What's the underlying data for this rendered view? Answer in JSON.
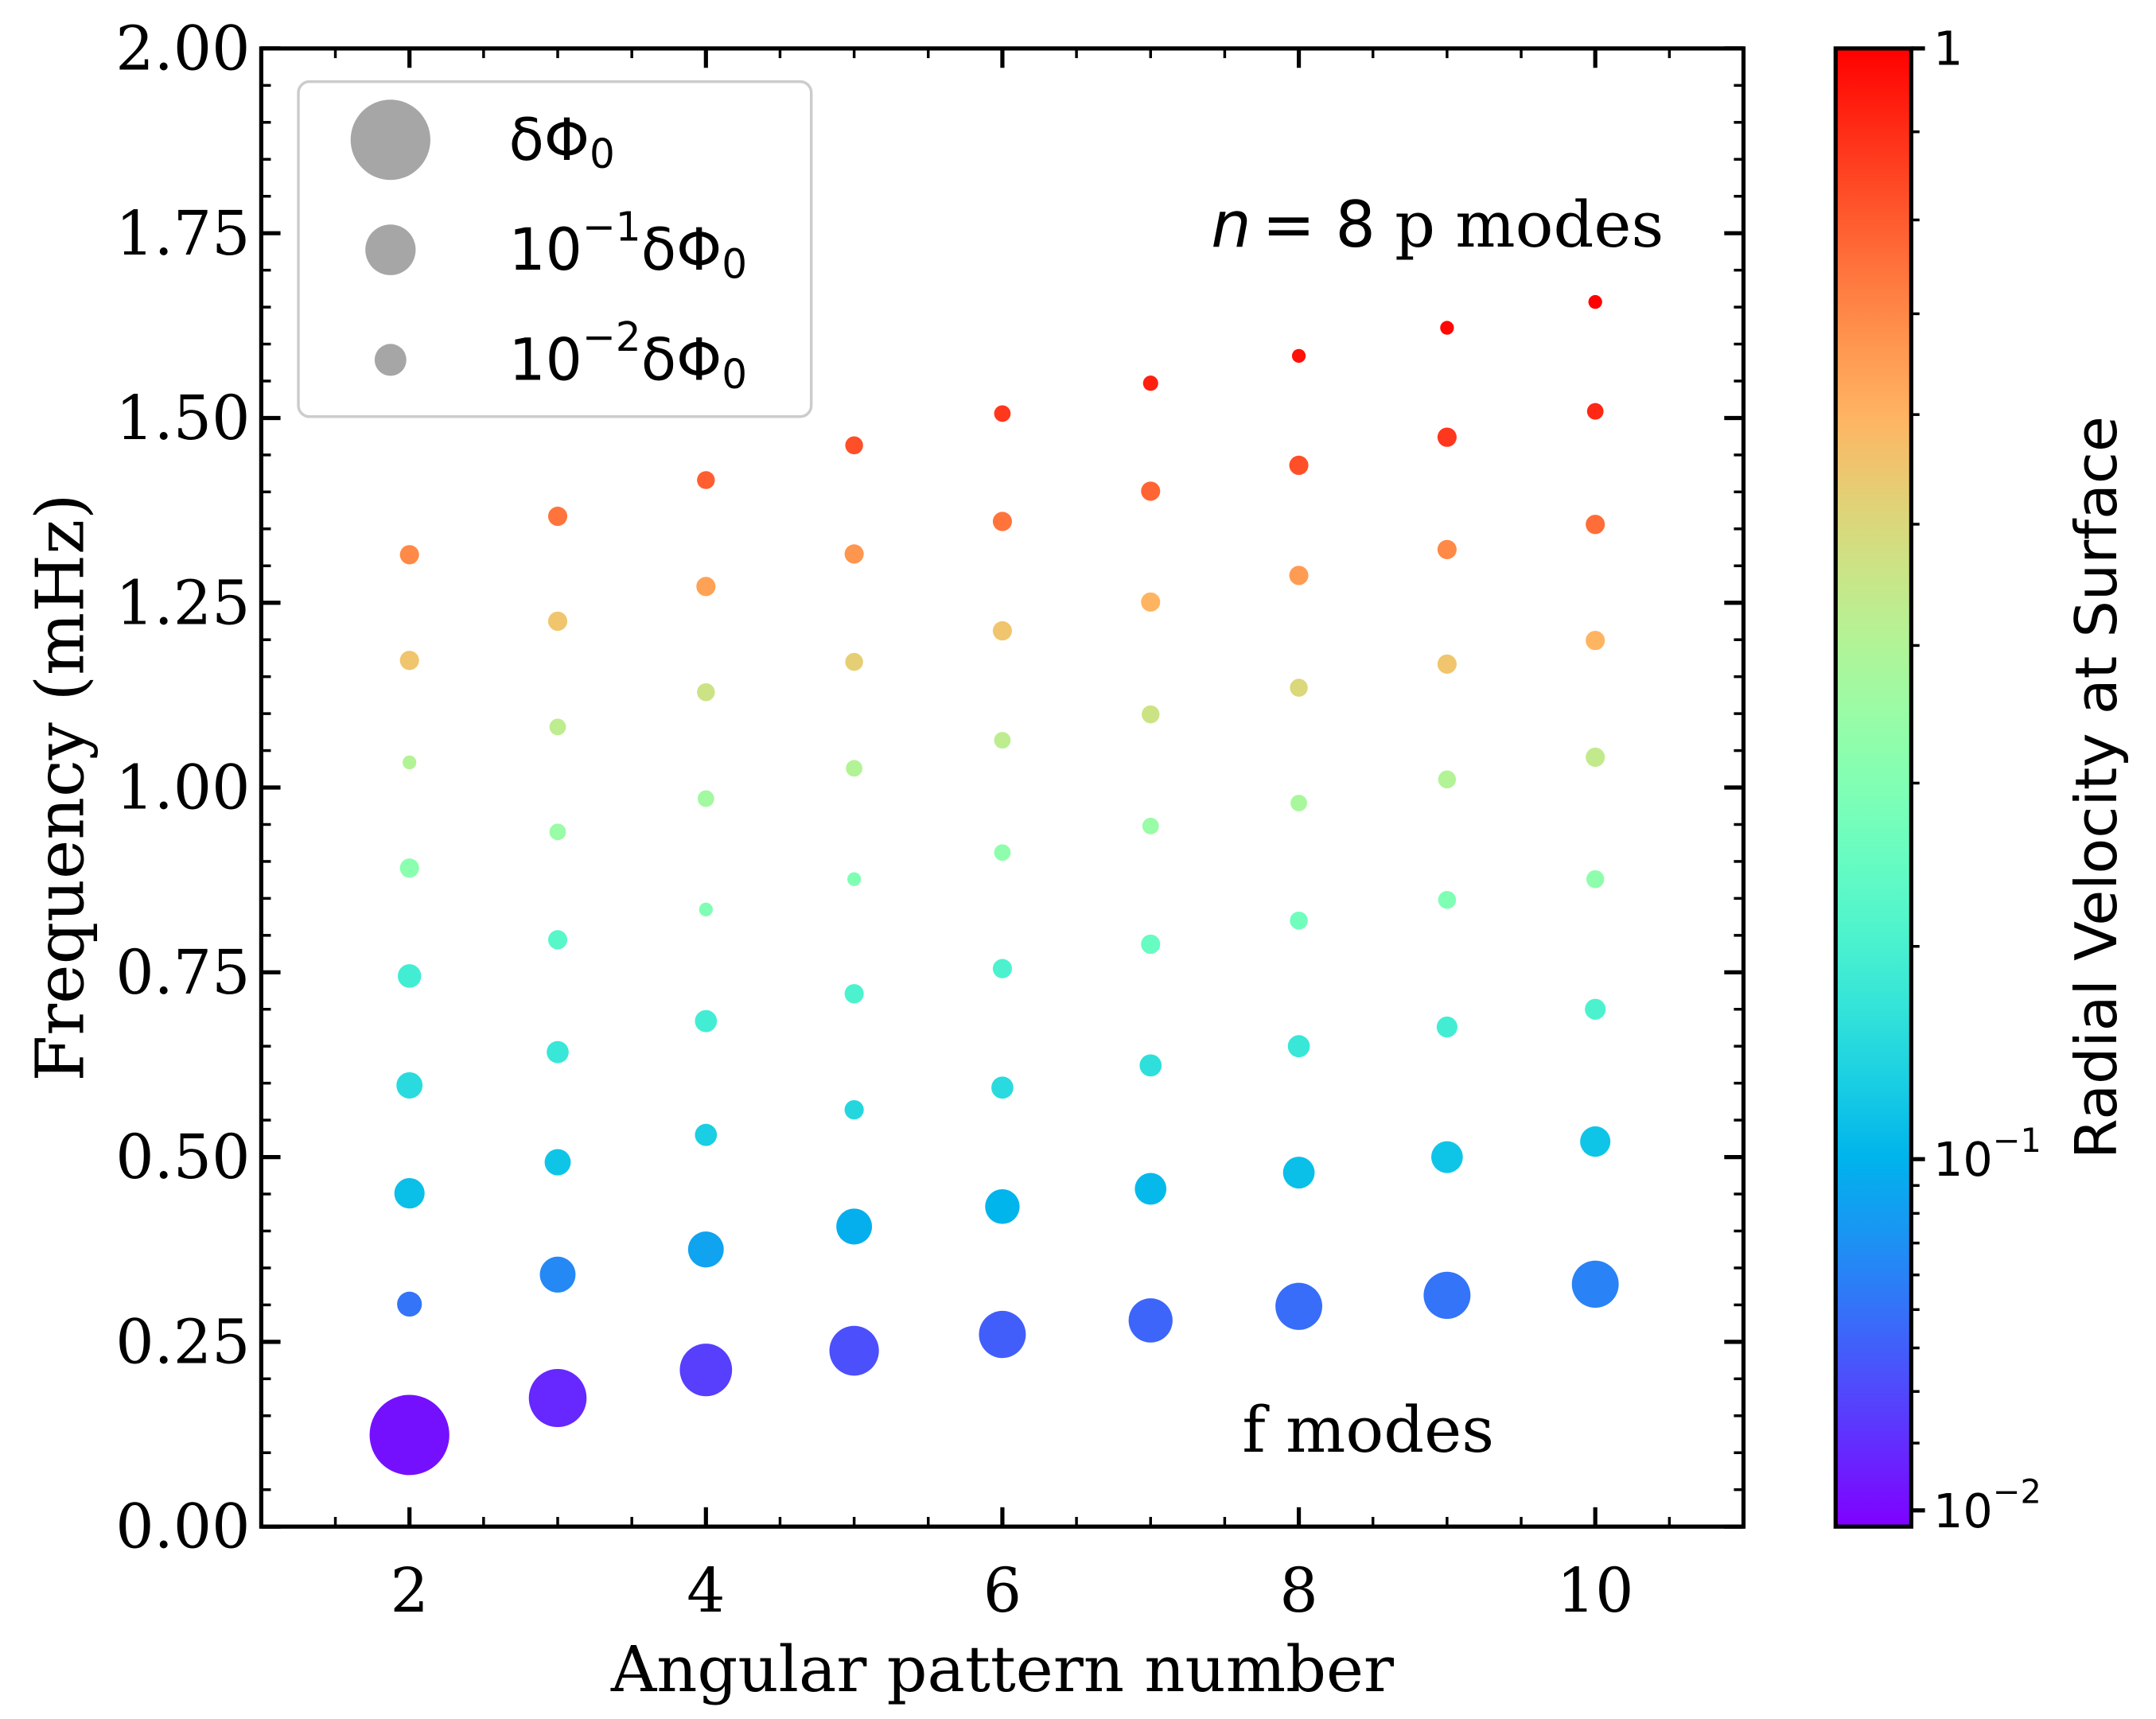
{
  "chart_data": {
    "type": "scatter",
    "xlabel": "Angular pattern number",
    "ylabel": "Frequency (mHz)",
    "xlim": [
      1,
      11
    ],
    "ylim": [
      0,
      2
    ],
    "xticks": [
      2,
      4,
      6,
      8,
      10
    ],
    "xminorticks": [
      1,
      1.5,
      2.5,
      3,
      3.5,
      4.5,
      5,
      5.5,
      6.5,
      7,
      7.5,
      8.5,
      9,
      9.5,
      10.5,
      11
    ],
    "yticks": [
      {
        "value": 0,
        "label": "0.00"
      },
      {
        "value": 0.25,
        "label": "0.25"
      },
      {
        "value": 0.5,
        "label": "0.50"
      },
      {
        "value": 0.75,
        "label": "0.75"
      },
      {
        "value": 1,
        "label": "1.00"
      },
      {
        "value": 1.25,
        "label": "1.25"
      },
      {
        "value": 1.5,
        "label": "1.50"
      },
      {
        "value": 1.75,
        "label": "1.75"
      },
      {
        "value": 2,
        "label": "2.00"
      }
    ],
    "yminorticks": [
      0.05,
      0.1,
      0.15,
      0.2,
      0.3,
      0.35,
      0.4,
      0.45,
      0.55,
      0.6,
      0.65,
      0.7,
      0.8,
      0.85,
      0.9,
      0.95,
      1.05,
      1.1,
      1.15,
      1.2,
      1.3,
      1.35,
      1.4,
      1.45,
      1.55,
      1.6,
      1.65,
      1.7,
      1.8,
      1.85,
      1.9,
      1.95
    ],
    "x": [
      2,
      2,
      2,
      2,
      2,
      2,
      2,
      2,
      2,
      3,
      3,
      3,
      3,
      3,
      3,
      3,
      3,
      3,
      4,
      4,
      4,
      4,
      4,
      4,
      4,
      4,
      4,
      5,
      5,
      5,
      5,
      5,
      5,
      5,
      5,
      5,
      6,
      6,
      6,
      6,
      6,
      6,
      6,
      6,
      6,
      7,
      7,
      7,
      7,
      7,
      7,
      7,
      7,
      7,
      8,
      8,
      8,
      8,
      8,
      8,
      8,
      8,
      8,
      9,
      9,
      9,
      9,
      9,
      9,
      9,
      9,
      9,
      10,
      10,
      10,
      10,
      10,
      10,
      10,
      10,
      10
    ],
    "y": [
      0.124,
      0.301,
      0.451,
      0.597,
      0.745,
      0.891,
      1.034,
      1.172,
      1.315,
      0.174,
      0.341,
      0.493,
      0.642,
      0.794,
      0.94,
      1.082,
      1.225,
      1.367,
      0.212,
      0.375,
      0.53,
      0.684,
      0.835,
      0.985,
      1.129,
      1.272,
      1.416,
      0.238,
      0.406,
      0.564,
      0.721,
      0.876,
      1.026,
      1.17,
      1.316,
      1.463,
      0.26,
      0.433,
      0.594,
      0.755,
      0.912,
      1.064,
      1.212,
      1.36,
      1.506,
      0.279,
      0.457,
      0.624,
      0.788,
      0.948,
      1.099,
      1.251,
      1.401,
      1.547,
      0.298,
      0.479,
      0.65,
      0.82,
      0.979,
      1.135,
      1.287,
      1.436,
      1.584,
      0.313,
      0.5,
      0.676,
      0.848,
      1.011,
      1.167,
      1.322,
      1.474,
      1.622,
      0.328,
      0.521,
      0.7,
      0.876,
      1.041,
      1.199,
      1.356,
      1.509,
      1.657
    ],
    "sizes": [
      1,
      0.0029,
      0.0079,
      0.0038,
      0.0022,
      0.0008,
      0.00015,
      0.0008,
      0.0008,
      0.199,
      0.018,
      0.0038,
      0.0016,
      0.0008,
      0.00038,
      0.00038,
      0.0008,
      0.0008,
      0.121,
      0.018,
      0.0016,
      0.0016,
      0.00015,
      0.00038,
      0.00056,
      0.0008,
      0.00056,
      0.092,
      0.018,
      0.0008,
      0.0008,
      0.00015,
      0.00038,
      0.00056,
      0.0008,
      0.00056,
      0.07,
      0.0152,
      0.0016,
      0.0008,
      0.00038,
      0.00038,
      0.0008,
      0.0008,
      0.00038,
      0.051,
      0.0098,
      0.0016,
      0.0008,
      0.00038,
      0.00056,
      0.0008,
      0.0008,
      0.00025,
      0.07,
      0.0098,
      0.0016,
      0.00056,
      0.00038,
      0.00056,
      0.0008,
      0.0008,
      0.00015,
      0.07,
      0.0098,
      0.0012,
      0.00056,
      0.00056,
      0.0008,
      0.0008,
      0.0008,
      0.00015,
      0.07,
      0.0079,
      0.0012,
      0.00056,
      0.0008,
      0.0008,
      0.0008,
      0.00038,
      0.00015
    ],
    "color_values": [
      0.0117,
      0.0513,
      0.1127,
      0.152,
      0.19,
      0.317,
      0.404,
      0.555,
      0.699,
      0.0184,
      0.0644,
      0.119,
      0.174,
      0.223,
      0.349,
      0.428,
      0.555,
      0.746,
      0.0265,
      0.0842,
      0.132,
      0.19,
      0.297,
      0.3705,
      0.464,
      0.64,
      0.794,
      0.0328,
      0.0951,
      0.1453,
      0.206,
      0.297,
      0.404,
      0.529,
      0.669,
      0.826,
      0.0397,
      0.1008,
      0.152,
      0.206,
      0.3275,
      0.428,
      0.555,
      0.746,
      0.877,
      0.0434,
      0.1067,
      0.1595,
      0.25,
      0.349,
      0.464,
      0.597,
      0.777,
      0.929,
      0.0473,
      0.1127,
      0.174,
      0.268,
      0.3817,
      0.502,
      0.654,
      0.826,
      0.964,
      0.0513,
      0.119,
      0.19,
      0.297,
      0.404,
      0.555,
      0.699,
      0.877,
      0.982,
      0.0599,
      0.119,
      0.206,
      0.3275,
      0.44,
      0.597,
      0.761,
      0.911,
      1
    ],
    "colormap": "rainbow",
    "color_norm": {
      "type": "power",
      "gamma": 0.5
    },
    "clim": [
      0.0081,
      1
    ],
    "colorbar_label": "Radial Velocity at Surface",
    "cticks": [
      1,
      {
        "value": 0.1,
        "label": "10",
        "exponent": "−1"
      },
      {
        "value": 0.01,
        "label": "10",
        "exponent": "−2"
      }
    ],
    "cminorticks": [
      0.02,
      0.03,
      0.04,
      0.05,
      0.06,
      0.07,
      0.08,
      0.09,
      0.2,
      0.3,
      0.4,
      0.5,
      0.6,
      0.7,
      0.8,
      0.9
    ],
    "legend_position": "upper left",
    "legend_color": "#a6a6a6",
    "legend": [
      {
        "label": "δΦ",
        "subscript": "0",
        "size": 1
      },
      {
        "base": "10",
        "exponent": "−1",
        "label": "δΦ",
        "subscript": "0",
        "size": 0.1
      },
      {
        "base": "10",
        "exponent": "−2",
        "label": "δΦ",
        "subscript": "0",
        "size": 0.01
      }
    ],
    "annotations": {
      "p_modes": {
        "variable": "n",
        "relation": "= 8",
        "text": "p modes"
      },
      "f_modes": "f modes"
    }
  }
}
